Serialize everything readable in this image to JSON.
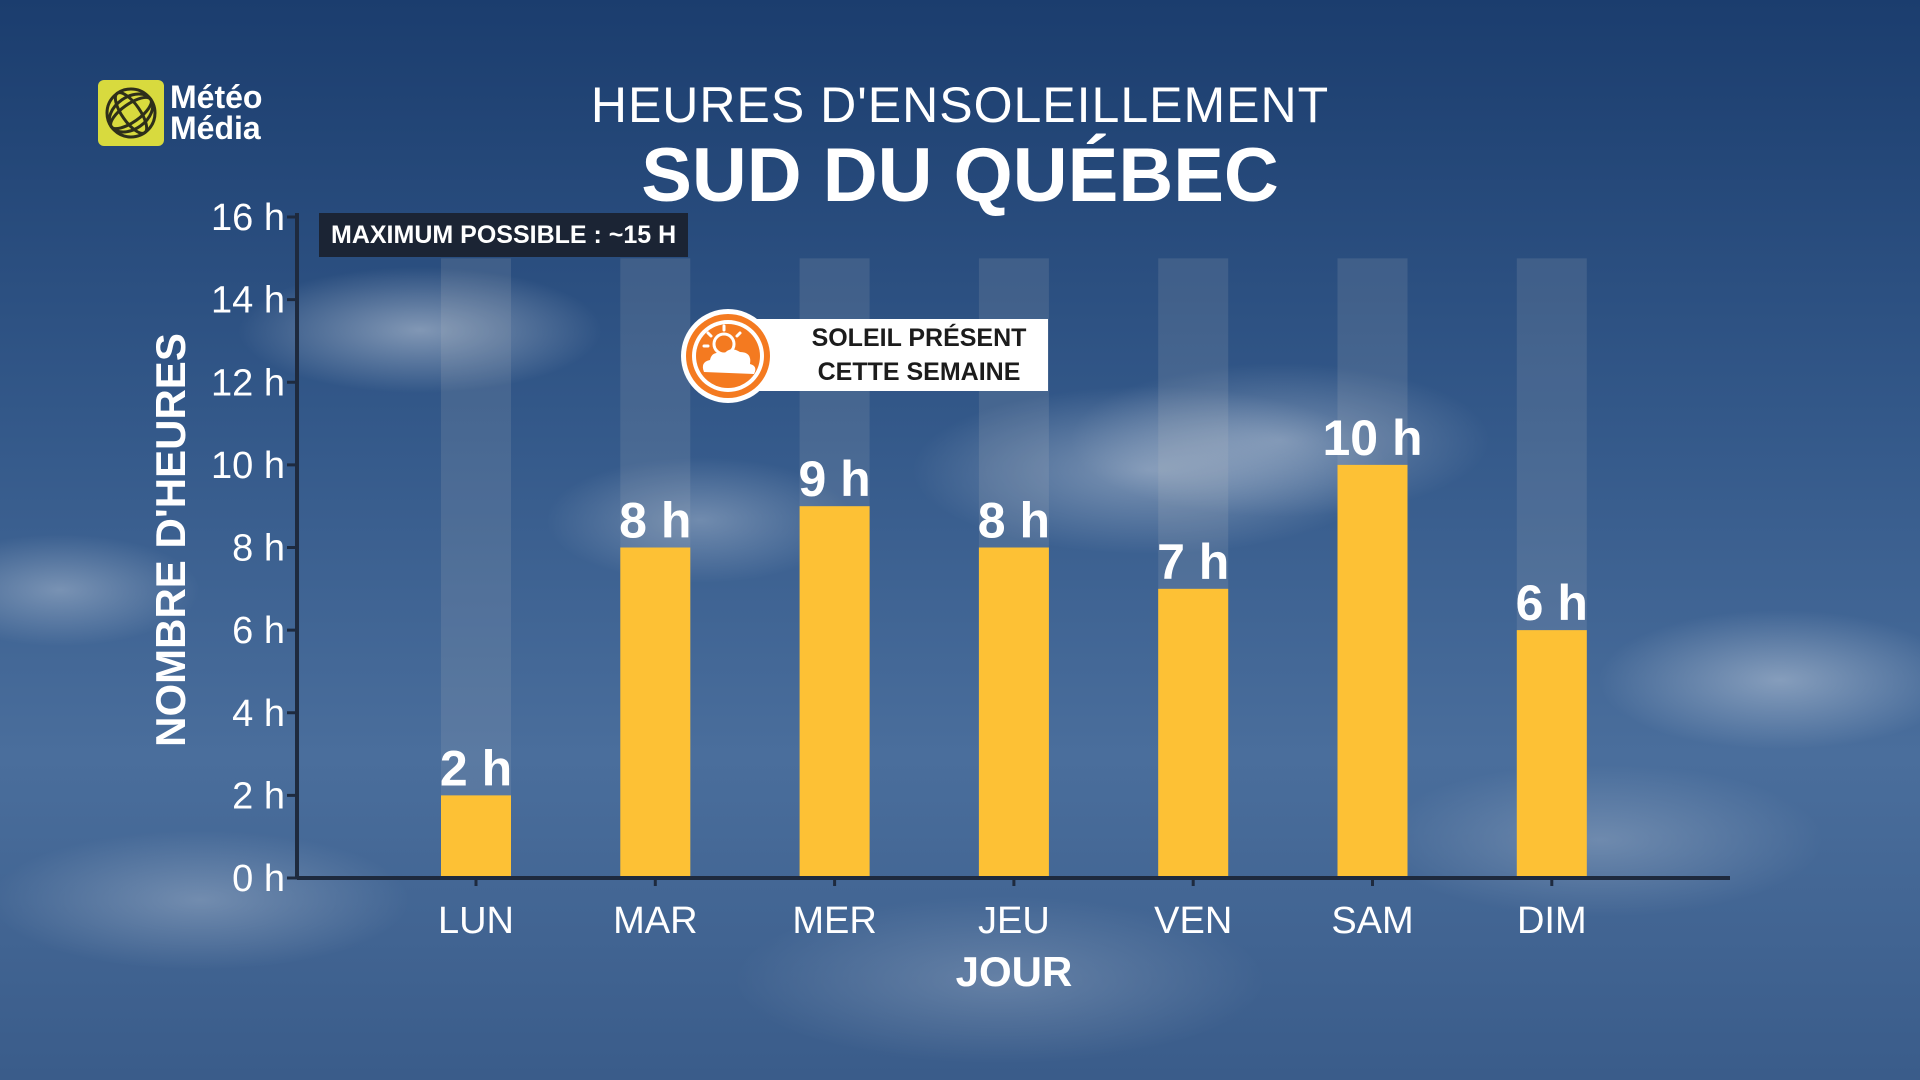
{
  "brand": {
    "line1": "Météo",
    "line2": "Média"
  },
  "header": {
    "subtitle": "HEURES D'ENSOLEILLEMENT",
    "title": "SUD DU QUÉBEC"
  },
  "annotations": {
    "max_possible": "MAXIMUM POSSIBLE : ~15 H",
    "sun_line1": "SOLEIL PRÉSENT",
    "sun_line2": "CETTE SEMAINE"
  },
  "colors": {
    "bar": "#fdc135",
    "background_bar": "#c8c8c8",
    "axis": "#1e2a3e",
    "icon": "#f47a20",
    "logo": "#d8da3e"
  },
  "chart_data": {
    "type": "bar",
    "categories": [
      "LUN",
      "MAR",
      "MER",
      "JEU",
      "VEN",
      "SAM",
      "DIM"
    ],
    "values": [
      2,
      8,
      9,
      8,
      7,
      10,
      6
    ],
    "data_labels": [
      "2 h",
      "8 h",
      "9 h",
      "8 h",
      "7 h",
      "10 h",
      "6 h"
    ],
    "max_possible": 15,
    "xlabel": "JOUR",
    "ylabel": "NOMBRE D'HEURES",
    "ylim": [
      0,
      16
    ],
    "yticks": [
      0,
      2,
      4,
      6,
      8,
      10,
      12,
      14,
      16
    ],
    "ytick_labels": [
      "0 h",
      "2 h",
      "4 h",
      "6 h",
      "8 h",
      "10 h",
      "12 h",
      "14 h",
      "16 h"
    ],
    "grid": false,
    "legend": "none"
  }
}
